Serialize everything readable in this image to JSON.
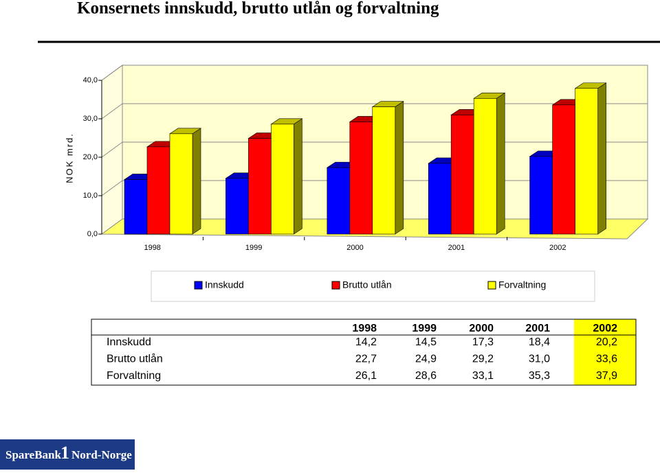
{
  "title": "Konsernets innskudd, brutto utlån og forvaltning",
  "chart_data": {
    "type": "bar3d",
    "y_label": "NOK mrd.",
    "categories": [
      "1998",
      "1999",
      "2000",
      "2001",
      "2002"
    ],
    "series": [
      {
        "name": "Innskudd",
        "color": "#0000ff",
        "values": [
          14.2,
          14.5,
          17.3,
          18.4,
          20.2
        ],
        "value_labels": [
          "14,2",
          "14,5",
          "17,3",
          "18,4",
          "20,2"
        ]
      },
      {
        "name": "Brutto utlån",
        "color": "#ff0000",
        "values": [
          22.7,
          24.9,
          29.2,
          31.0,
          33.6
        ],
        "value_labels": [
          "22,7",
          "24,9",
          "29,2",
          "31,0",
          "33,6"
        ]
      },
      {
        "name": "Forvaltning",
        "color": "#ffff00",
        "values": [
          26.1,
          28.6,
          33.1,
          35.3,
          37.9
        ],
        "value_labels": [
          "26,1",
          "28,6",
          "33,1",
          "35,3",
          "37,9"
        ]
      }
    ],
    "ylim": [
      0,
      40
    ],
    "yticks": [
      {
        "value": 0,
        "label": "0,0"
      },
      {
        "value": 10,
        "label": "10,0"
      },
      {
        "value": 20,
        "label": "20,0"
      },
      {
        "value": 30,
        "label": "30,0"
      },
      {
        "value": 40,
        "label": "40,0"
      }
    ],
    "grid": true,
    "legend": "bottom",
    "data_table": true
  },
  "logo": {
    "text_left": "SpareBank",
    "text_mid": "1",
    "text_right": "Nord-Norge"
  }
}
